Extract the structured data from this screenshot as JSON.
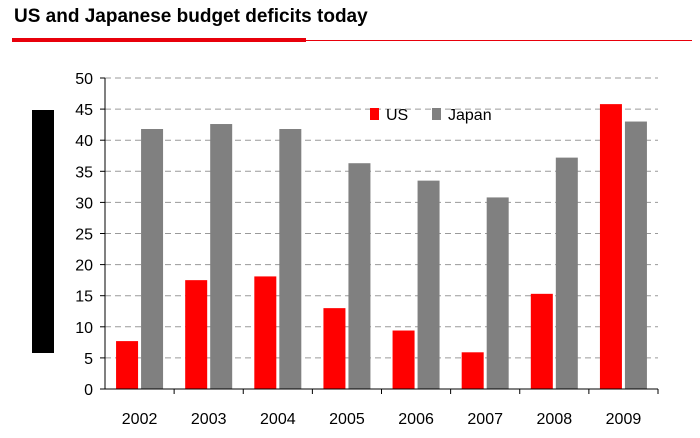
{
  "chart_data": {
    "type": "bar",
    "title": "US and Japanese budget deficits today",
    "categories": [
      "2002",
      "2003",
      "2004",
      "2005",
      "2006",
      "2007",
      "2008",
      "2009"
    ],
    "series": [
      {
        "name": "US",
        "color": "#ff0000",
        "values": [
          7.7,
          17.5,
          18.1,
          13.0,
          9.4,
          5.9,
          15.3,
          45.8
        ]
      },
      {
        "name": "Japan",
        "color": "#808080",
        "values": [
          41.8,
          42.6,
          41.8,
          36.3,
          33.5,
          30.8,
          37.2,
          43.0
        ]
      }
    ],
    "ylim": [
      0,
      50
    ],
    "yticks": [
      "0",
      "5",
      "10",
      "15",
      "20",
      "25",
      "30",
      "35",
      "40",
      "45",
      "50"
    ],
    "grid": true,
    "legend_position": "top-right"
  }
}
